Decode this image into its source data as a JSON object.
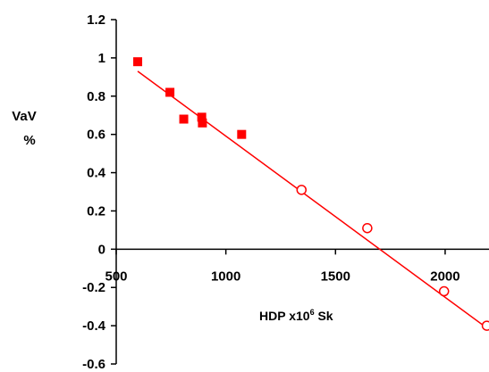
{
  "chart_data": {
    "type": "scatter",
    "title": "",
    "xlabel": "HDP x10",
    "xlabel_sup": "6",
    "xlabel_suffix": " Sk",
    "ylabel_line1": "VaV",
    "ylabel_line2": "%",
    "xlim": [
      500,
      2200
    ],
    "ylim": [
      -0.6,
      1.2
    ],
    "xticks": [
      500,
      1000,
      1500,
      2000
    ],
    "xtick_labels": [
      "500",
      "1000",
      "1500",
      "2000"
    ],
    "yticks": [
      -0.6,
      -0.4,
      -0.2,
      0,
      0.2,
      0.4,
      0.6,
      0.8,
      1,
      1.2
    ],
    "ytick_labels": [
      "-0.6",
      "-0.4",
      "-0.2",
      "0",
      "0.2",
      "0.4",
      "0.6",
      "0.8",
      "1",
      "1.2"
    ],
    "grid": false,
    "series": [
      {
        "marker": "filled-square",
        "color": "#ff0000",
        "x": [
          598,
          745,
          808,
          890,
          893,
          1072
        ],
        "y": [
          0.98,
          0.82,
          0.68,
          0.69,
          0.66,
          0.6
        ]
      },
      {
        "marker": "open-circle",
        "color": "#ff0000",
        "x": [
          1345,
          1645,
          1995,
          2190
        ],
        "y": [
          0.31,
          0.11,
          -0.22,
          -0.4
        ]
      }
    ],
    "trendline": {
      "color": "#ff0000",
      "x": [
        598,
        2200
      ],
      "y": [
        0.93,
        -0.42
      ]
    }
  }
}
